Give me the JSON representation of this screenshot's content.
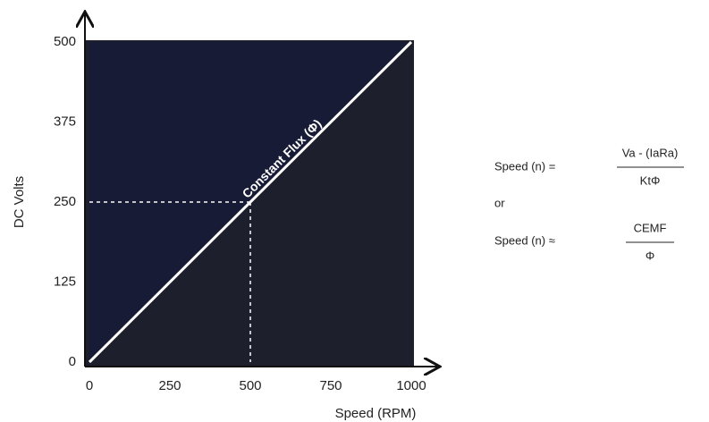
{
  "chart_data": {
    "type": "line",
    "x": [
      0,
      1000
    ],
    "series": [
      {
        "color": "#ffffff",
        "values": [
          0,
          500
        ]
      }
    ],
    "guide": [
      500,
      250
    ],
    "annotation": "Constant Flux (Φ)",
    "xlabel": "Speed (RPM)",
    "ylabel": "DC Volts",
    "xlim": [
      0,
      1000
    ],
    "xticks": [
      0,
      250,
      500,
      750,
      1000
    ],
    "ylim": [
      0,
      500
    ],
    "yticks": [
      0,
      125,
      250,
      375,
      500
    ],
    "grid": false,
    "equations": {
      "first": {
        "lhs": "Speed (n) =",
        "numerator": "Va - (IaRa)",
        "denominator": "KtΦ"
      },
      "joiner": "or",
      "second": {
        "lhs": "Speed (n) ≈",
        "numerator": "CEMF",
        "denominator": "Φ"
      }
    }
  }
}
